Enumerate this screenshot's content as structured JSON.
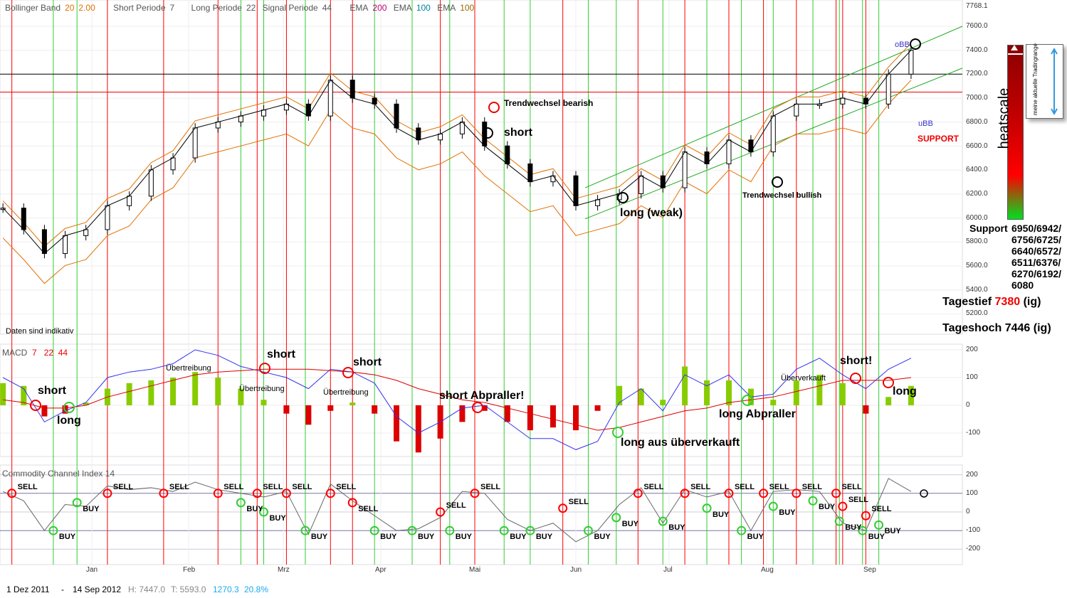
{
  "legend": {
    "bb_label": "Bollinger Band",
    "bb_period": "20",
    "bb_mult": "2.00",
    "short_label": "Short Periode",
    "short_val": "7",
    "long_label": "Long Periode",
    "long_val": "22",
    "signal_label": "Signal Periode",
    "signal_val": "44",
    "ema1_label": "EMA",
    "ema1_val": "200",
    "ema2_label": "EMA",
    "ema2_val": "100",
    "ema3_label": "EMA",
    "ema3_val": "100"
  },
  "colors": {
    "buy": "#33cc33",
    "sell": "#ff0000",
    "macd": "#3333ee",
    "signal": "#dd0000",
    "hist_pos": "#88cc00",
    "hist_neg": "#dd0000",
    "cloud_bull": "#7fb3dd",
    "cloud_bear": "#f08080"
  },
  "price_axis": {
    "top_label": "7768.1",
    "ticks": [
      "7600.0",
      "7400.0",
      "7200.0",
      "7000.0",
      "6800.0",
      "6600.0",
      "6400.0",
      "6200.0",
      "6000.0",
      "5800.0",
      "5600.0",
      "5400.0",
      "5200.0"
    ]
  },
  "macd_axis": {
    "ticks": [
      "200",
      "100",
      "0",
      "-100"
    ]
  },
  "cci_axis": {
    "ticks": [
      "200",
      "100",
      "0",
      "-100",
      "-200"
    ]
  },
  "months": [
    "Jan",
    "Feb",
    "Mrz",
    "Apr",
    "Mai",
    "Jun",
    "Jul",
    "Aug",
    "Sep"
  ],
  "annotations": {
    "disclaimer": "Daten sind indikativ",
    "trend_bear": "Trendwechsel bearish",
    "short": "short",
    "long_weak": "long (weak)",
    "trend_bull": "Trendwechsel bullish",
    "support_tag": "SUPPORT",
    "obb": "oBB",
    "ubb": "uBB",
    "heatscale": "heatscale",
    "tradingrange": "meine aktuelle Tradingrange",
    "support_label": "Support",
    "support_values": [
      "6950/6942/",
      "6756/6725/",
      "6640/6572/",
      "6511/6376/",
      "6270/6192/",
      "6080"
    ],
    "tagestief_label": "Tagestief",
    "tagestief_val": "7380",
    "tagestief_suffix": "(ig)",
    "tageshoch_label": "Tageshoch",
    "tageshoch_val": "7446",
    "tageshoch_suffix": "(ig)"
  },
  "macd_panel": {
    "title": "MACD",
    "p1": "7",
    "p2": "22",
    "p3": "44",
    "notes": [
      "short",
      "long",
      "Übertreibung",
      "Übertreibung",
      "short",
      "Übertreibung",
      "short",
      "short Abpraller!",
      "long aus überverkauft",
      "long Abpraller",
      "Überverkauft",
      "short!",
      "long"
    ]
  },
  "cci_panel": {
    "title": "Commodity Channel Index 14",
    "sell": "SELL",
    "buy": "BUY"
  },
  "footer": {
    "from": "1 Dez 2011",
    "dash": "-",
    "to": "14 Sep 2012",
    "high": "H: 7447.0",
    "low": "T: 5593.0",
    "diff": "1270.3",
    "pct": "20.8%"
  },
  "chart_data": {
    "type": "candlestick",
    "dates": [
      "2011-12-02",
      "2011-12-09",
      "2011-12-16",
      "2011-12-23",
      "2011-12-30",
      "2012-01-06",
      "2012-01-13",
      "2012-01-20",
      "2012-01-27",
      "2012-02-03",
      "2012-02-10",
      "2012-02-17",
      "2012-02-24",
      "2012-03-02",
      "2012-03-09",
      "2012-03-16",
      "2012-03-23",
      "2012-03-30",
      "2012-04-06",
      "2012-04-13",
      "2012-04-20",
      "2012-04-27",
      "2012-05-04",
      "2012-05-11",
      "2012-05-18",
      "2012-05-25",
      "2012-06-01",
      "2012-06-08",
      "2012-06-15",
      "2012-06-22",
      "2012-06-29",
      "2012-07-06",
      "2012-07-13",
      "2012-07-20",
      "2012-07-27",
      "2012-08-03",
      "2012-08-10",
      "2012-08-17",
      "2012-08-24",
      "2012-08-31",
      "2012-09-07",
      "2012-09-14"
    ],
    "close": [
      6080,
      5900,
      5700,
      5850,
      5900,
      6100,
      6180,
      6400,
      6500,
      6750,
      6800,
      6850,
      6900,
      6950,
      6850,
      7150,
      7000,
      6950,
      6750,
      6650,
      6700,
      6800,
      6600,
      6450,
      6300,
      6350,
      6100,
      6150,
      6200,
      6350,
      6250,
      6550,
      6450,
      6650,
      6550,
      6850,
      6950,
      6950,
      7000,
      6950,
      7200,
      7400
    ],
    "price_ylim": [
      5200,
      7768.1
    ],
    "hlines": [
      7200,
      7050
    ],
    "macd_hist": [
      80,
      70,
      -40,
      -30,
      10,
      60,
      80,
      90,
      100,
      120,
      100,
      60,
      20,
      -30,
      -70,
      -20,
      10,
      -30,
      -130,
      -170,
      -120,
      -60,
      -20,
      -60,
      -90,
      -80,
      -90,
      -20,
      70,
      60,
      20,
      140,
      90,
      90,
      60,
      20,
      90,
      110,
      80,
      -30,
      30,
      70
    ],
    "macd": [
      100,
      60,
      -60,
      -20,
      10,
      100,
      120,
      130,
      150,
      200,
      180,
      140,
      120,
      100,
      60,
      130,
      120,
      80,
      -40,
      -100,
      -60,
      -10,
      0,
      -60,
      -120,
      -120,
      -160,
      -130,
      10,
      60,
      -20,
      110,
      70,
      110,
      30,
      40,
      130,
      170,
      110,
      60,
      130,
      170
    ],
    "signal": [
      20,
      10,
      -10,
      -10,
      0,
      30,
      50,
      70,
      90,
      110,
      120,
      125,
      130,
      130,
      130,
      125,
      120,
      110,
      90,
      60,
      40,
      20,
      10,
      -10,
      -30,
      -50,
      -70,
      -90,
      -80,
      -60,
      -40,
      -20,
      -10,
      10,
      20,
      30,
      50,
      70,
      90,
      90,
      90,
      100
    ],
    "cci": [
      110,
      60,
      -100,
      40,
      30,
      140,
      120,
      130,
      110,
      160,
      120,
      100,
      80,
      110,
      -120,
      150,
      60,
      -20,
      -100,
      -90,
      -30,
      110,
      100,
      -40,
      -100,
      -60,
      -160,
      -100,
      40,
      130,
      -60,
      120,
      80,
      110,
      -100,
      110,
      120,
      110,
      -60,
      -100,
      180,
      110
    ],
    "signals": [
      {
        "type": "SELL",
        "date": "2011-12-05",
        "cci": 100
      },
      {
        "type": "BUY",
        "date": "2011-12-19",
        "cci": -100
      },
      {
        "type": "BUY",
        "date": "2011-12-27",
        "cci": 50
      },
      {
        "type": "SELL",
        "date": "2012-01-06",
        "cci": 100
      },
      {
        "type": "SELL",
        "date": "2012-01-24",
        "cci": 100
      },
      {
        "type": "SELL",
        "date": "2012-02-10",
        "cci": 100
      },
      {
        "type": "BUY",
        "date": "2012-02-17",
        "cci": 50
      },
      {
        "type": "SELL",
        "date": "2012-02-22",
        "cci": 100
      },
      {
        "type": "BUY",
        "date": "2012-02-24",
        "cci": 0
      },
      {
        "type": "SELL",
        "date": "2012-03-02",
        "cci": 100
      },
      {
        "type": "BUY",
        "date": "2012-03-08",
        "cci": -100
      },
      {
        "type": "SELL",
        "date": "2012-03-16",
        "cci": 100
      },
      {
        "type": "SELL",
        "date": "2012-03-23",
        "cci": 50
      },
      {
        "type": "BUY",
        "date": "2012-03-30",
        "cci": -100
      },
      {
        "type": "BUY",
        "date": "2012-04-11",
        "cci": -100
      },
      {
        "type": "SELL",
        "date": "2012-04-20",
        "cci": 0
      },
      {
        "type": "BUY",
        "date": "2012-04-23",
        "cci": -100
      },
      {
        "type": "SELL",
        "date": "2012-05-01",
        "cci": 100
      },
      {
        "type": "BUY",
        "date": "2012-05-10",
        "cci": -100
      },
      {
        "type": "BUY",
        "date": "2012-05-18",
        "cci": -100
      },
      {
        "type": "SELL",
        "date": "2012-05-28",
        "cci": 20
      },
      {
        "type": "BUY",
        "date": "2012-06-05",
        "cci": -100
      },
      {
        "type": "BUY",
        "date": "2012-06-14",
        "cci": -30
      },
      {
        "type": "SELL",
        "date": "2012-06-21",
        "cci": 100
      },
      {
        "type": "BUY",
        "date": "2012-06-29",
        "cci": -50
      },
      {
        "type": "SELL",
        "date": "2012-07-06",
        "cci": 100
      },
      {
        "type": "BUY",
        "date": "2012-07-13",
        "cci": 20
      },
      {
        "type": "SELL",
        "date": "2012-07-20",
        "cci": 100
      },
      {
        "type": "BUY",
        "date": "2012-07-24",
        "cci": -100
      },
      {
        "type": "SELL",
        "date": "2012-07-31",
        "cci": 100
      },
      {
        "type": "BUY",
        "date": "2012-08-03",
        "cci": 30
      },
      {
        "type": "SELL",
        "date": "2012-08-10",
        "cci": 100
      },
      {
        "type": "BUY",
        "date": "2012-08-15",
        "cci": 60
      },
      {
        "type": "SELL",
        "date": "2012-08-22",
        "cci": 100
      },
      {
        "type": "BUY",
        "date": "2012-08-23",
        "cci": -50
      },
      {
        "type": "SELL",
        "date": "2012-08-24",
        "cci": 30
      },
      {
        "type": "BUY",
        "date": "2012-08-30",
        "cci": -100
      },
      {
        "type": "SELL",
        "date": "2012-08-31",
        "cci": -20
      },
      {
        "type": "BUY",
        "date": "2012-09-04",
        "cci": -70
      }
    ]
  }
}
